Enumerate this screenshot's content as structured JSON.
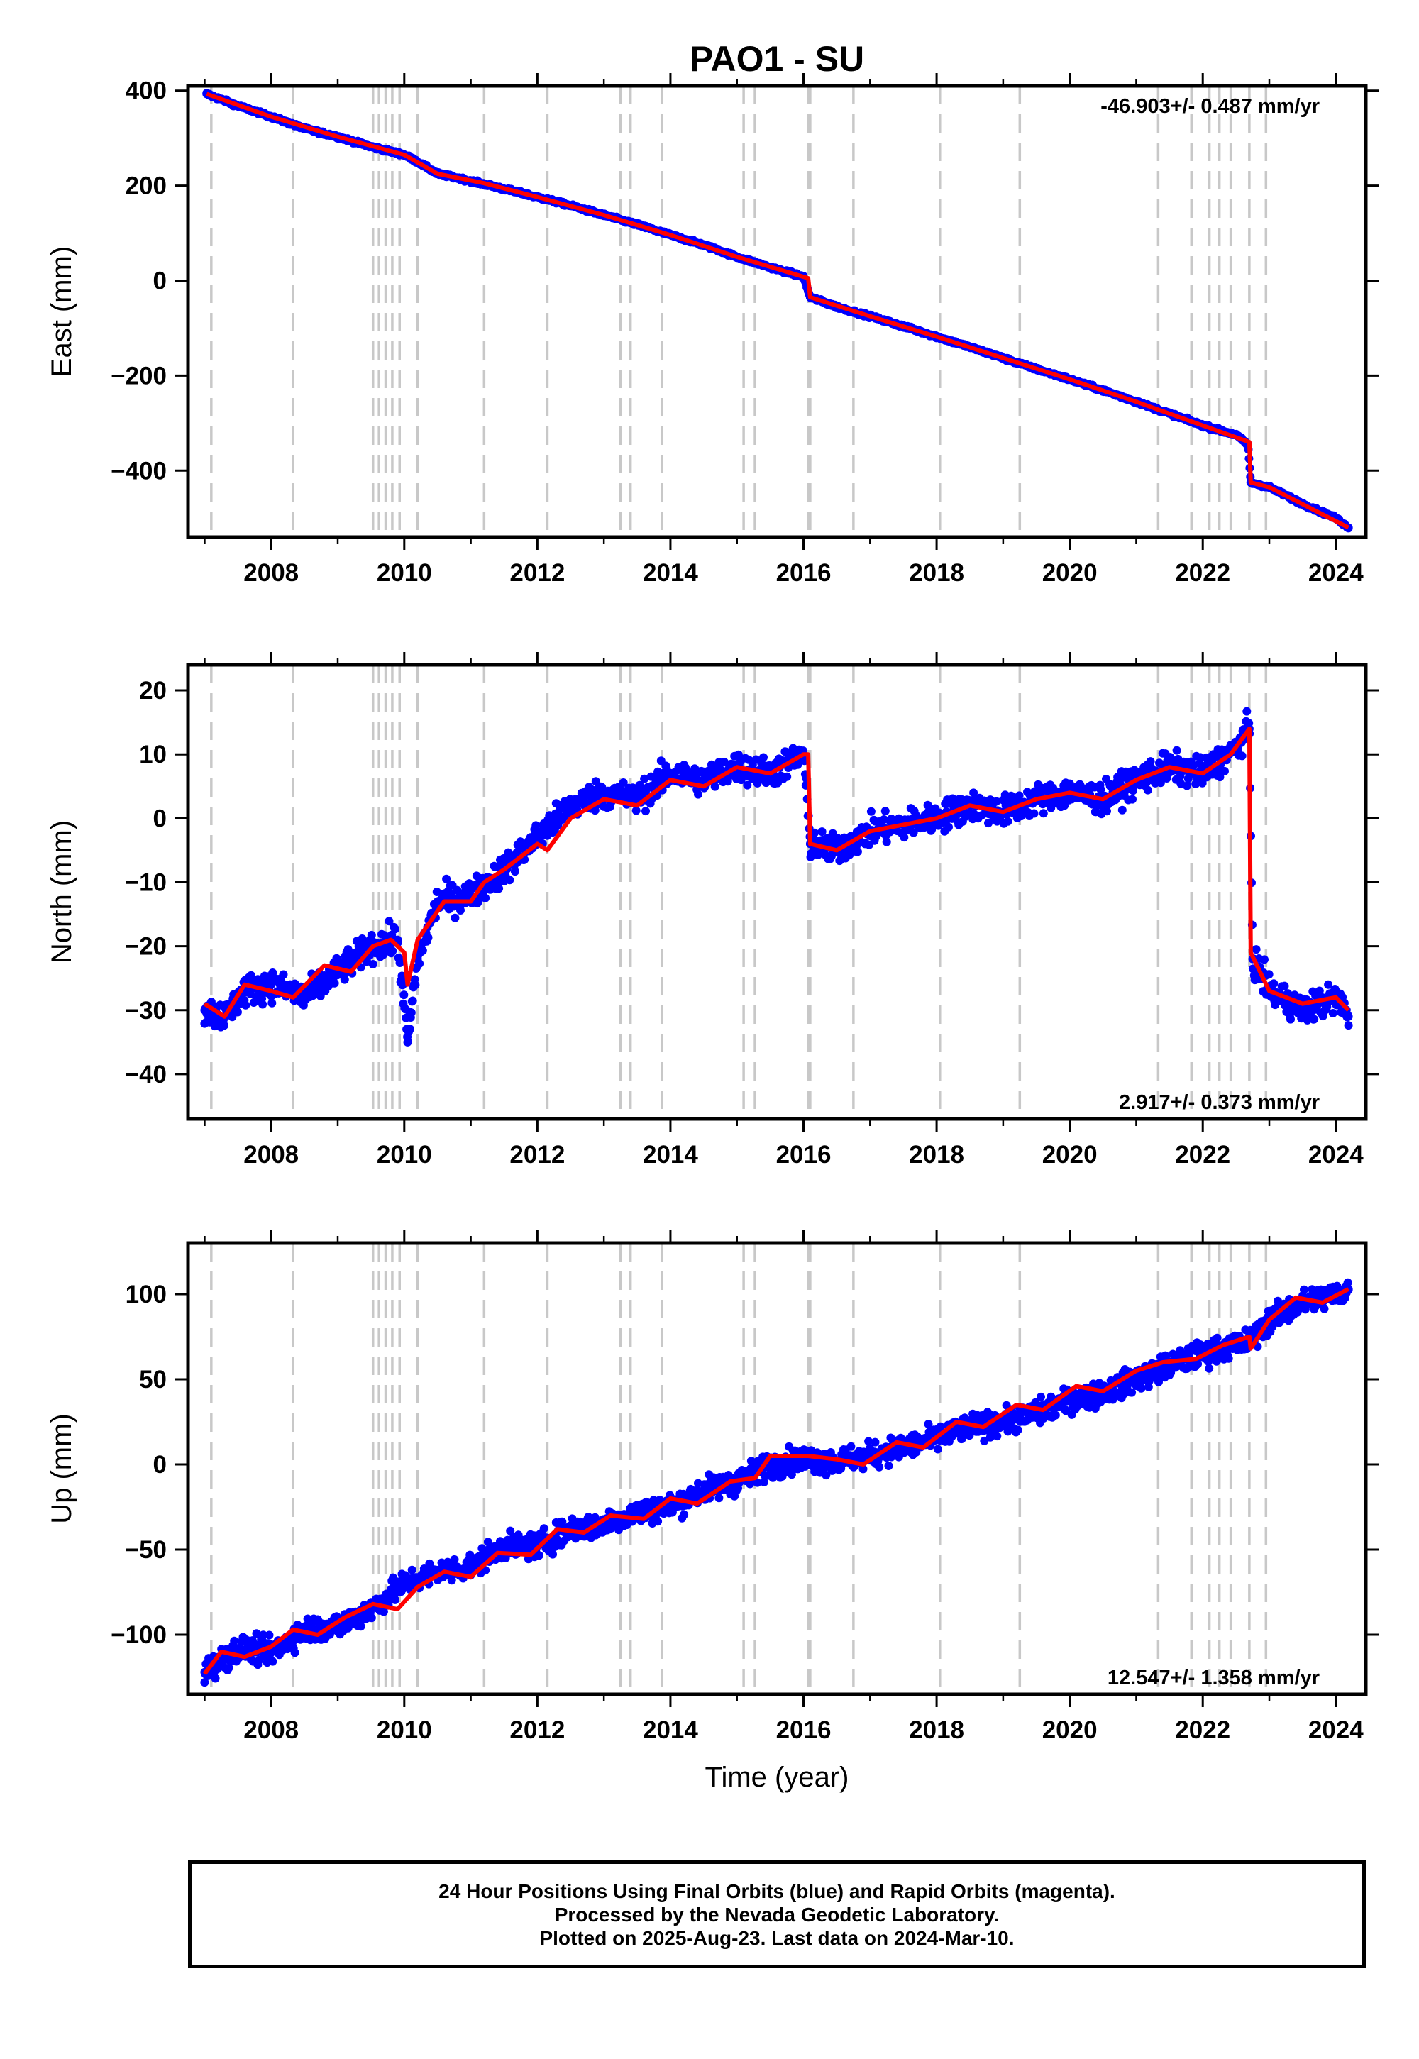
{
  "title": "PAO1 - SU",
  "colors": {
    "data": "#0000ff",
    "model": "#ff0000",
    "event_line": "#c8c8c8",
    "frame": "#000000"
  },
  "x_axis": {
    "label": "Time (year)",
    "range": [
      2006.75,
      2024.45
    ],
    "ticks": [
      2008,
      2010,
      2012,
      2014,
      2016,
      2018,
      2020,
      2022,
      2024
    ],
    "tick_labels": [
      "2008",
      "2010",
      "2012",
      "2014",
      "2016",
      "2018",
      "2020",
      "2022",
      "2024"
    ]
  },
  "event_lines": [
    2007.1,
    2008.33,
    2009.53,
    2009.62,
    2009.72,
    2009.82,
    2009.93,
    2010.2,
    2011.2,
    2012.15,
    2013.25,
    2013.4,
    2013.87,
    2015.1,
    2015.27,
    2016.07,
    2016.1,
    2016.75,
    2018.05,
    2019.25,
    2021.33,
    2021.83,
    2022.1,
    2022.25,
    2022.42,
    2022.7,
    2022.95
  ],
  "chart_data": [
    {
      "type": "scatter",
      "name": "east",
      "ylabel": "East (mm)",
      "ylim": [
        -540,
        410
      ],
      "yticks": [
        400,
        200,
        0,
        -200,
        -400
      ],
      "ytick_labels": [
        "400",
        "200",
        "0",
        "−200",
        "−400"
      ],
      "rate_text": "-46.903+/- 0.487 mm/yr",
      "rate_position": "top-right",
      "series": [
        {
          "name": "data",
          "x": [
            2007.03,
            2007.5,
            2008.0,
            2008.5,
            2009.0,
            2009.5,
            2010.0,
            2010.2,
            2010.5,
            2011.0,
            2011.5,
            2012.0,
            2012.5,
            2013.0,
            2013.5,
            2014.0,
            2014.5,
            2015.0,
            2015.5,
            2016.0,
            2016.1,
            2016.5,
            2017.0,
            2017.5,
            2018.0,
            2018.5,
            2019.0,
            2019.5,
            2020.0,
            2020.5,
            2021.0,
            2021.5,
            2022.0,
            2022.5,
            2022.68,
            2022.72,
            2023.0,
            2023.5,
            2024.0,
            2024.19
          ],
          "y": [
            393,
            368,
            345,
            320,
            303,
            282,
            265,
            250,
            225,
            210,
            193,
            176,
            158,
            138,
            118,
            96,
            75,
            50,
            28,
            8,
            -35,
            -55,
            -75,
            -96,
            -118,
            -140,
            -163,
            -186,
            -208,
            -231,
            -255,
            -280,
            -305,
            -325,
            -345,
            -425,
            -435,
            -470,
            -500,
            -520
          ]
        },
        {
          "name": "model",
          "x": [
            2007.03,
            2008.0,
            2009.0,
            2010.0,
            2010.5,
            2011.2,
            2012.0,
            2013.0,
            2014.0,
            2015.0,
            2016.07,
            2016.1,
            2017.0,
            2018.0,
            2019.0,
            2020.0,
            2021.0,
            2022.0,
            2022.7,
            2022.72,
            2023.0,
            2024.19
          ],
          "y": [
            393,
            345,
            303,
            265,
            225,
            205,
            176,
            138,
            96,
            50,
            5,
            -35,
            -75,
            -118,
            -163,
            -208,
            -255,
            -305,
            -340,
            -425,
            -435,
            -520
          ]
        }
      ]
    },
    {
      "type": "scatter",
      "name": "north",
      "ylabel": "North (mm)",
      "ylim": [
        -47,
        24
      ],
      "yticks": [
        20,
        10,
        0,
        -10,
        -20,
        -30,
        -40
      ],
      "ytick_labels": [
        "20",
        "10",
        "0",
        "−10",
        "−20",
        "−30",
        "−40"
      ],
      "rate_text": "2.917+/- 0.373 mm/yr",
      "rate_position": "bottom-right",
      "series": [
        {
          "name": "data",
          "x": [
            2007.0,
            2007.3,
            2007.6,
            2008.0,
            2008.5,
            2009.0,
            2009.5,
            2009.9,
            2010.05,
            2010.2,
            2010.5,
            2011.0,
            2011.5,
            2012.0,
            2012.5,
            2013.0,
            2013.5,
            2014.0,
            2014.5,
            2015.0,
            2015.5,
            2016.0,
            2016.1,
            2016.5,
            2017.0,
            2017.5,
            2018.0,
            2018.5,
            2019.0,
            2019.5,
            2020.0,
            2020.5,
            2021.0,
            2021.5,
            2022.0,
            2022.5,
            2022.7,
            2022.75,
            2023.0,
            2023.5,
            2024.0,
            2024.19
          ],
          "y": [
            -30,
            -31,
            -27,
            -26,
            -28,
            -24,
            -20,
            -19,
            -35,
            -22,
            -13,
            -12,
            -8,
            -3,
            2,
            4,
            3,
            7,
            6,
            8,
            7,
            10,
            -4,
            -5,
            -2,
            -1,
            0,
            2,
            1,
            3,
            4,
            3,
            6,
            8,
            7,
            11,
            14,
            -22,
            -27,
            -30,
            -28,
            -31
          ]
        },
        {
          "name": "model",
          "x": [
            2007.0,
            2007.3,
            2007.6,
            2008.0,
            2008.33,
            2008.8,
            2009.2,
            2009.53,
            2009.8,
            2010.0,
            2010.05,
            2010.2,
            2010.6,
            2011.0,
            2011.2,
            2011.5,
            2012.0,
            2012.15,
            2012.5,
            2013.0,
            2013.5,
            2014.0,
            2014.5,
            2015.0,
            2015.5,
            2016.0,
            2016.07,
            2016.1,
            2016.5,
            2017.0,
            2017.5,
            2018.0,
            2018.5,
            2019.0,
            2019.5,
            2020.0,
            2020.5,
            2021.0,
            2021.5,
            2022.0,
            2022.42,
            2022.7,
            2022.72,
            2023.0,
            2023.5,
            2024.0,
            2024.19
          ],
          "y": [
            -29,
            -31,
            -26,
            -27,
            -28,
            -23,
            -24,
            -20,
            -19,
            -21,
            -26,
            -19,
            -13,
            -13,
            -10,
            -8,
            -4,
            -5,
            0,
            3,
            2,
            6,
            5,
            8,
            7,
            10,
            10,
            -4,
            -5,
            -2,
            -1,
            0,
            2,
            1,
            3,
            4,
            3,
            6,
            8,
            7,
            10,
            14,
            -21,
            -27,
            -29,
            -28,
            -30
          ]
        }
      ]
    },
    {
      "type": "scatter",
      "name": "up",
      "ylabel": "Up (mm)",
      "ylim": [
        -135,
        130
      ],
      "yticks": [
        100,
        50,
        0,
        -50,
        -100
      ],
      "ytick_labels": [
        "100",
        "50",
        "0",
        "−50",
        "−100"
      ],
      "rate_text": "12.547+/- 1.358 mm/yr",
      "rate_position": "bottom-right",
      "series": [
        {
          "name": "data",
          "x": [
            2007.0,
            2007.5,
            2008.0,
            2008.5,
            2009.0,
            2009.5,
            2010.0,
            2010.5,
            2011.0,
            2011.5,
            2012.0,
            2012.5,
            2013.0,
            2013.5,
            2014.0,
            2014.5,
            2015.0,
            2015.5,
            2016.0,
            2016.5,
            2017.0,
            2017.5,
            2018.0,
            2018.5,
            2019.0,
            2019.5,
            2020.0,
            2020.5,
            2021.0,
            2021.5,
            2022.0,
            2022.5,
            2022.7,
            2023.0,
            2023.5,
            2024.0,
            2024.19
          ],
          "y": [
            -122,
            -108,
            -110,
            -97,
            -95,
            -85,
            -70,
            -63,
            -60,
            -48,
            -48,
            -38,
            -35,
            -28,
            -25,
            -15,
            -10,
            0,
            3,
            2,
            5,
            10,
            15,
            22,
            25,
            30,
            38,
            42,
            50,
            58,
            65,
            70,
            72,
            85,
            95,
            100,
            103
          ]
        },
        {
          "name": "model",
          "x": [
            2007.0,
            2007.25,
            2007.6,
            2008.0,
            2008.33,
            2008.7,
            2009.1,
            2009.53,
            2009.9,
            2010.2,
            2010.6,
            2011.0,
            2011.4,
            2011.9,
            2012.3,
            2012.7,
            2013.1,
            2013.6,
            2014.0,
            2014.4,
            2014.9,
            2015.27,
            2015.5,
            2016.07,
            2016.5,
            2016.9,
            2017.4,
            2017.8,
            2018.3,
            2018.7,
            2019.2,
            2019.6,
            2020.1,
            2020.5,
            2021.0,
            2021.4,
            2021.9,
            2022.3,
            2022.7,
            2022.72,
            2023.0,
            2023.4,
            2023.8,
            2024.19
          ],
          "y": [
            -123,
            -110,
            -113,
            -107,
            -97,
            -100,
            -90,
            -82,
            -85,
            -72,
            -63,
            -66,
            -52,
            -53,
            -38,
            -40,
            -30,
            -32,
            -20,
            -23,
            -10,
            -8,
            5,
            5,
            3,
            0,
            13,
            10,
            25,
            22,
            35,
            32,
            46,
            43,
            55,
            60,
            62,
            70,
            75,
            68,
            85,
            98,
            95,
            103
          ]
        }
      ]
    }
  ],
  "footer": {
    "line1": "24 Hour Positions Using Final Orbits (blue) and Rapid Orbits (magenta).",
    "line2": "Processed by the Nevada Geodetic Laboratory.",
    "line3": "Plotted on 2025-Aug-23. Last data on 2024-Mar-10."
  }
}
